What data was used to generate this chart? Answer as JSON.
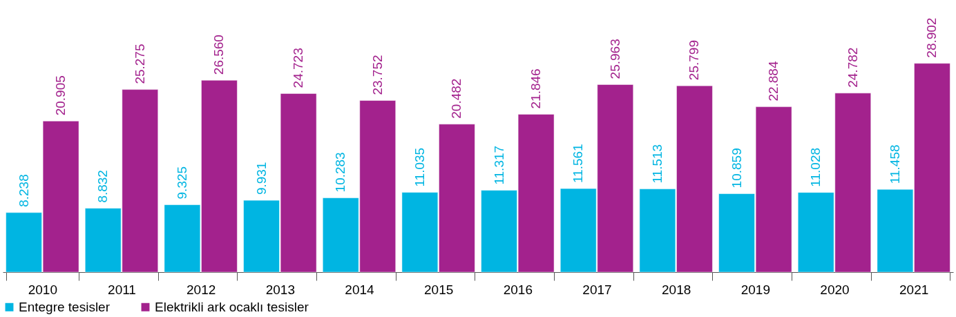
{
  "chart_data": {
    "type": "bar",
    "categories": [
      "2010",
      "2011",
      "2012",
      "2013",
      "2014",
      "2015",
      "2016",
      "2017",
      "2018",
      "2019",
      "2020",
      "2021"
    ],
    "series": [
      {
        "name": "Entegre tesisler",
        "color": "#00b5e2",
        "values": [
          8.238,
          8.832,
          9.325,
          9.931,
          10.283,
          11.035,
          11.317,
          11.561,
          11.513,
          10.859,
          11.028,
          11.458
        ],
        "value_labels": [
          "8.238",
          "8.832",
          "9.325",
          "9.931",
          "10.283",
          "11.035",
          "11.317",
          "11.561",
          "11.513",
          "10.859",
          "11.028",
          "11.458"
        ]
      },
      {
        "name": "Elektrikli ark ocaklı tesisler",
        "color": "#a3228d",
        "values": [
          20.905,
          25.275,
          26.56,
          24.723,
          23.752,
          20.482,
          21.846,
          25.963,
          25.799,
          22.884,
          24.782,
          28.902
        ],
        "value_labels": [
          "20.905",
          "25.275",
          "26.560",
          "24.723",
          "23.752",
          "20.482",
          "21.846",
          "25.963",
          "25.799",
          "22.884",
          "24.782",
          "28.902"
        ]
      }
    ],
    "legend": "bottom",
    "grid": false
  }
}
